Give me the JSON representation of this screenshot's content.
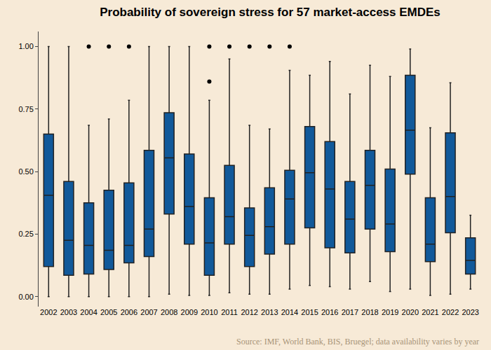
{
  "chart_data": {
    "type": "box",
    "title": "Probability of sovereign stress for 57 market-access EMDEs",
    "annotation": "Source: IMF, World Bank, BIS, Bruegel; data availability varies by year",
    "categories": [
      "2002",
      "2003",
      "2004",
      "2005",
      "2006",
      "2007",
      "2008",
      "2009",
      "2010",
      "2011",
      "2012",
      "2013",
      "2014",
      "2015",
      "2016",
      "2017",
      "2018",
      "2019",
      "2020",
      "2021",
      "2022",
      "2023"
    ],
    "min": [
      0.0,
      0.0,
      0.0,
      0.0,
      0.0,
      0.0,
      0.01,
      0.005,
      0.005,
      0.015,
      0.01,
      0.01,
      0.03,
      0.045,
      0.04,
      0.03,
      0.06,
      0.02,
      0.03,
      0.005,
      0.01,
      0.03
    ],
    "q1": [
      0.12,
      0.085,
      0.09,
      0.108,
      0.135,
      0.16,
      0.33,
      0.21,
      0.085,
      0.21,
      0.12,
      0.17,
      0.21,
      0.275,
      0.195,
      0.175,
      0.27,
      0.18,
      0.49,
      0.14,
      0.255,
      0.09
    ],
    "median": [
      0.405,
      0.225,
      0.205,
      0.185,
      0.205,
      0.27,
      0.555,
      0.36,
      0.215,
      0.32,
      0.245,
      0.28,
      0.39,
      0.495,
      0.43,
      0.31,
      0.445,
      0.29,
      0.665,
      0.21,
      0.4,
      0.145
    ],
    "q3": [
      0.65,
      0.46,
      0.375,
      0.425,
      0.455,
      0.585,
      0.735,
      0.57,
      0.395,
      0.525,
      0.355,
      0.435,
      0.505,
      0.68,
      0.62,
      0.46,
      0.585,
      0.51,
      0.885,
      0.395,
      0.655,
      0.235
    ],
    "max": [
      1.0,
      1.0,
      0.685,
      0.71,
      0.785,
      1.0,
      1.0,
      1.0,
      0.785,
      0.95,
      0.685,
      0.67,
      0.905,
      0.885,
      0.94,
      0.81,
      0.925,
      0.88,
      0.99,
      0.675,
      0.855,
      0.325
    ],
    "outliers": [
      [],
      [],
      [
        1.0
      ],
      [
        1.0
      ],
      [
        1.0
      ],
      [],
      [],
      [],
      [
        1.0,
        0.86
      ],
      [
        1.0
      ],
      [
        1.0
      ],
      [
        1.0
      ],
      [
        1.0
      ],
      [],
      [],
      [],
      [],
      [],
      [],
      [],
      [],
      []
    ],
    "color": "#11599a",
    "ylim": [
      -0.04,
      1.06
    ],
    "yticks": [
      {
        "value": 0,
        "label": "0.00"
      },
      {
        "value": 0.25,
        "label": "0.25"
      },
      {
        "value": 0.5,
        "label": "0.50"
      },
      {
        "value": 0.75,
        "label": "0.75"
      },
      {
        "value": 1,
        "label": "1.00"
      }
    ],
    "grid": false
  }
}
